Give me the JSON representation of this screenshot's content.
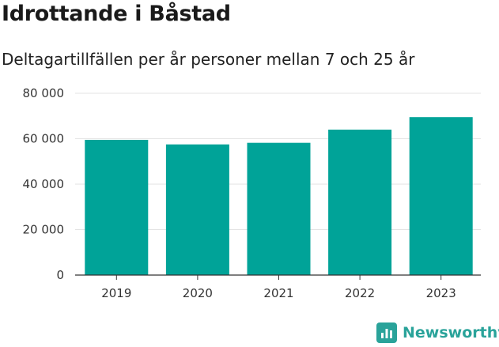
{
  "header": {
    "title": "Idrottande i Båstad",
    "subtitle": "Deltagartillfällen per år personer mellan 7 och 25 år"
  },
  "chart_data": {
    "type": "bar",
    "categories": [
      "2019",
      "2020",
      "2021",
      "2022",
      "2023"
    ],
    "values": [
      59500,
      57500,
      58200,
      64000,
      69500
    ],
    "ylim": [
      0,
      80000
    ],
    "yticks": [
      0,
      20000,
      40000,
      60000,
      80000
    ],
    "ytick_labels": [
      "0",
      "20 000",
      "40 000",
      "60 000",
      "80 000"
    ],
    "bar_color": "#00a398",
    "grid": true
  },
  "brand": {
    "name": "Newsworthy",
    "color": "#2aa39a",
    "icon": "bar-chart-logo-icon"
  }
}
